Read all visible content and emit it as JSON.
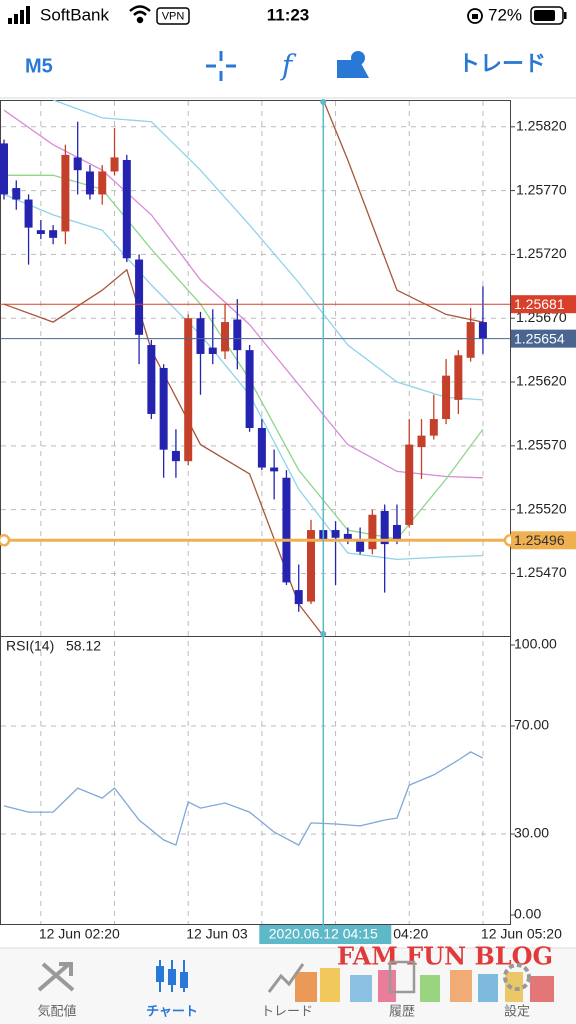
{
  "status_bar": {
    "carrier": "SoftBank",
    "vpn": "VPN",
    "time": "11:23",
    "battery": "72%"
  },
  "toolbar": {
    "timeframe": "M5",
    "trade": "トレード"
  },
  "chart_data": [
    {
      "type": "candlestick",
      "open": [
        1.25807,
        1.25772,
        1.25763,
        1.25739,
        1.25739,
        1.25738,
        1.25796,
        1.25785,
        1.25767,
        1.25785,
        1.25794,
        1.25716,
        1.25649,
        1.25631,
        1.25566,
        1.25558,
        1.2567,
        1.25647,
        1.25644,
        1.25669,
        1.25645,
        1.25584,
        1.25553,
        1.25545,
        1.25457,
        1.25448,
        1.25504,
        1.25504,
        1.25501,
        1.25497,
        1.25489,
        1.25519,
        1.25508,
        1.25508,
        1.25569,
        1.25578,
        1.25591,
        1.25606,
        1.25639,
        1.25667
      ],
      "high": [
        1.2581,
        1.25778,
        1.25767,
        1.25747,
        1.25743,
        1.25806,
        1.25824,
        1.2579,
        1.2579,
        1.25819,
        1.25798,
        1.2572,
        1.25653,
        1.25634,
        1.25583,
        1.25673,
        1.25675,
        1.25677,
        1.25681,
        1.25685,
        1.25649,
        1.25591,
        1.25567,
        1.25551,
        1.25477,
        1.25512,
        1.25512,
        1.25511,
        1.25506,
        1.25506,
        1.2552,
        1.25524,
        1.25524,
        1.25591,
        1.25591,
        1.2561,
        1.25638,
        1.25645,
        1.25678,
        1.25695
      ],
      "low": [
        1.25763,
        1.25755,
        1.25712,
        1.25732,
        1.25728,
        1.25728,
        1.25767,
        1.25763,
        1.25759,
        1.25782,
        1.25714,
        1.25634,
        1.25591,
        1.25545,
        1.25545,
        1.25555,
        1.2561,
        1.25634,
        1.25638,
        1.2563,
        1.25581,
        1.25551,
        1.25528,
        1.25461,
        1.2544,
        1.25446,
        1.25493,
        1.25461,
        1.25493,
        1.25485,
        1.25485,
        1.25455,
        1.25493,
        1.25506,
        1.25544,
        1.25575,
        1.25587,
        1.25595,
        1.25636,
        1.25642
      ],
      "close": [
        1.25767,
        1.25763,
        1.25741,
        1.25736,
        1.25733,
        1.25798,
        1.25786,
        1.25767,
        1.25785,
        1.25796,
        1.25717,
        1.25657,
        1.25595,
        1.25567,
        1.25558,
        1.2567,
        1.25642,
        1.25642,
        1.25667,
        1.25645,
        1.25584,
        1.25553,
        1.2555,
        1.25463,
        1.25446,
        1.25504,
        1.25497,
        1.25498,
        1.25497,
        1.25487,
        1.25516,
        1.25493,
        1.25497,
        1.25571,
        1.25578,
        1.25591,
        1.25625,
        1.25641,
        1.25667,
        1.25654
      ],
      "up_color": "#c4402a",
      "down_color": "#2424b0",
      "ylim": [
        1.25421,
        1.25841
      ],
      "yticks": [
        {
          "value": 1.2582,
          "label": "1.25820"
        },
        {
          "value": 1.2577,
          "label": "1.25770"
        },
        {
          "value": 1.2572,
          "label": "1.25720"
        },
        {
          "value": 1.2567,
          "label": "1.25670"
        },
        {
          "value": 1.2562,
          "label": "1.25620"
        },
        {
          "value": 1.2557,
          "label": "1.25570"
        },
        {
          "value": 1.2552,
          "label": "1.25520"
        },
        {
          "value": 1.2547,
          "label": "1.25470"
        }
      ],
      "grid": true,
      "xticks": [
        {
          "value": 3,
          "label": "12 Jun 02:20"
        },
        {
          "value": 15,
          "label": "12 Jun 03"
        },
        {
          "value": 27,
          "label": "04:20"
        },
        {
          "value": 39,
          "label": "12 Jun 05:20"
        }
      ],
      "crosshair": {
        "value": 26,
        "label": "2020.06.12 04:15"
      },
      "lines": [
        {
          "color": "#8fd3ea",
          "x": [
            4,
            8,
            12,
            16,
            20,
            24,
            28,
            32,
            36,
            39
          ],
          "values": [
            1.25841,
            1.25827,
            1.25824,
            1.25786,
            1.25743,
            1.25698,
            1.25649,
            1.2562,
            1.25608,
            1.25606
          ]
        },
        {
          "color": "#8fd3ea",
          "x": [
            0,
            4,
            8,
            12,
            16,
            20,
            24,
            28,
            32,
            36,
            39
          ],
          "values": [
            1.25767,
            1.25751,
            1.25739,
            1.25696,
            1.25657,
            1.2561,
            1.25536,
            1.25486,
            1.25481,
            1.25483,
            1.25484
          ]
        },
        {
          "color": "#d98ad8",
          "x": [
            0,
            4,
            8,
            12,
            16,
            20,
            24,
            28,
            32,
            36,
            39
          ],
          "values": [
            1.25833,
            1.25806,
            1.25786,
            1.25751,
            1.257,
            1.25665,
            1.25618,
            1.25571,
            1.2555,
            1.25546,
            1.25545
          ]
        },
        {
          "color": "#8fd68a",
          "x": [
            0,
            4,
            8,
            12,
            16,
            20,
            24,
            28,
            32,
            36,
            39
          ],
          "values": [
            1.25782,
            1.25782,
            1.25771,
            1.25724,
            1.25681,
            1.25622,
            1.25551,
            1.25504,
            1.25497,
            1.25544,
            1.25583
          ]
        },
        {
          "color": "#a8553a",
          "x": [
            0,
            4,
            8,
            10,
            12,
            16,
            20,
            24,
            26
          ],
          "values": [
            1.25681,
            1.25667,
            1.25692,
            1.25708,
            1.25645,
            1.25571,
            1.25548,
            1.25446,
            1.25421
          ]
        },
        {
          "color": "#a8553a",
          "x": [
            26,
            28,
            32,
            36,
            39
          ],
          "values": [
            1.25841,
            1.25794,
            1.25692,
            1.25673,
            1.25667
          ]
        }
      ],
      "price_lines": [
        {
          "value": 1.25681,
          "color": "#d8402c",
          "text_color": "#ffffff"
        },
        {
          "value": 1.25654,
          "color": "#4a6690",
          "text_color": "#ffffff"
        },
        {
          "value": 1.25496,
          "color": "#f0b050",
          "text_color": "#333333"
        }
      ]
    },
    {
      "type": "line",
      "indicator": "RSI(14)",
      "current": 58.12,
      "color": "#7fa8d8",
      "x": [
        0,
        2,
        4,
        6,
        8,
        9,
        11,
        13,
        14,
        15,
        16,
        18,
        20,
        22,
        24,
        25,
        27,
        29,
        31,
        32,
        33,
        35,
        37,
        38,
        39
      ],
      "values": [
        40.4,
        38.1,
        38.1,
        47.0,
        43.3,
        47.0,
        35.2,
        27.8,
        25.9,
        41.9,
        39.6,
        41.5,
        38.1,
        30.7,
        25.9,
        34.1,
        33.7,
        33.0,
        35.2,
        35.9,
        48.1,
        51.9,
        57.4,
        60.4,
        58.12
      ],
      "ylim": [
        0,
        100
      ],
      "yticks": [
        {
          "value": 100,
          "label": "100.00"
        },
        {
          "value": 70,
          "label": "70.00"
        },
        {
          "value": 30,
          "label": "30.00"
        },
        {
          "value": 0,
          "label": "0.00"
        }
      ],
      "grid": true
    }
  ],
  "watermark": "FAM FUN BLOG",
  "tabs": [
    "気配値",
    "チャート",
    "トレード",
    "履歴",
    "設定"
  ]
}
